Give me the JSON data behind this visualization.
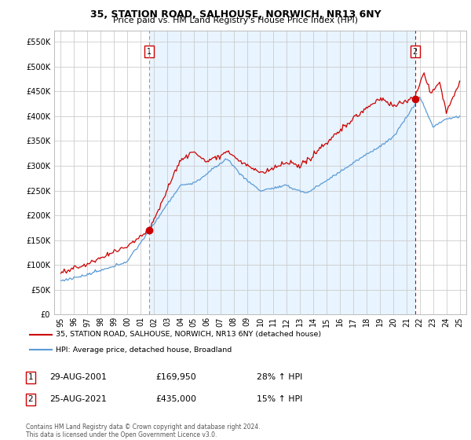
{
  "title": "35, STATION ROAD, SALHOUSE, NORWICH, NR13 6NY",
  "subtitle": "Price paid vs. HM Land Registry's House Price Index (HPI)",
  "yticks": [
    0,
    50000,
    100000,
    150000,
    200000,
    250000,
    300000,
    350000,
    400000,
    450000,
    500000,
    550000
  ],
  "ylim": [
    0,
    572000
  ],
  "sale1_x": 2001.66,
  "sale1_y": 169950,
  "sale2_x": 2021.65,
  "sale2_y": 435000,
  "hpi_color": "#5b9bd5",
  "price_color": "#cc0000",
  "shade_color": "#ddeeff",
  "legend_label1": "35, STATION ROAD, SALHOUSE, NORWICH, NR13 6NY (detached house)",
  "legend_label2": "HPI: Average price, detached house, Broadland",
  "table_rows": [
    {
      "num": "1",
      "date": "29-AUG-2001",
      "price": "£169,950",
      "change": "28% ↑ HPI"
    },
    {
      "num": "2",
      "date": "25-AUG-2021",
      "price": "£435,000",
      "change": "15% ↑ HPI"
    }
  ],
  "footnote": "Contains HM Land Registry data © Crown copyright and database right 2024.\nThis data is licensed under the Open Government Licence v3.0.",
  "xlim_min": 1994.5,
  "xlim_max": 2025.5,
  "xtick_years": [
    1995,
    1996,
    1997,
    1998,
    1999,
    2000,
    2001,
    2002,
    2003,
    2004,
    2005,
    2006,
    2007,
    2008,
    2009,
    2010,
    2011,
    2012,
    2013,
    2014,
    2015,
    2016,
    2017,
    2018,
    2019,
    2020,
    2021,
    2022,
    2023,
    2024,
    2025
  ],
  "background_color": "#ffffff",
  "grid_color": "#cccccc"
}
